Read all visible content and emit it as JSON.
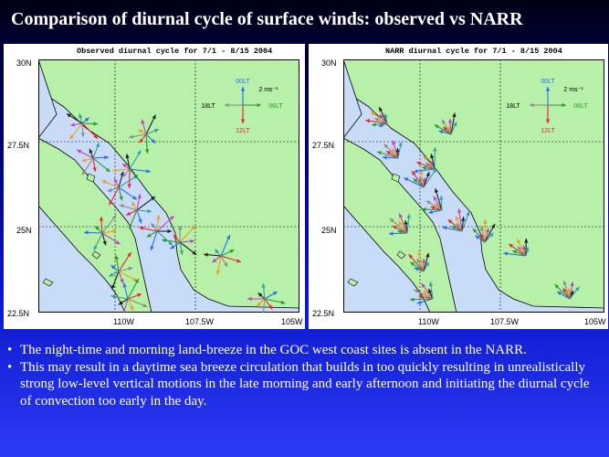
{
  "slide": {
    "title": "Comparison of diurnal cycle of surface winds: observed vs NARR"
  },
  "panels": [
    {
      "title": "Observed diurnal cycle for 7/1 - 8/15 2004",
      "y_ticks": [
        "30N",
        "27.5N",
        "25N",
        "22.5N"
      ],
      "x_ticks": [
        "110W",
        "107.5W",
        "105W"
      ],
      "legend": {
        "top": "00LT",
        "scale": "2 ms⁻¹",
        "left": "18LT",
        "right": "06LT",
        "bottom": "12LT"
      }
    },
    {
      "title": "NARR diurnal cycle for 7/1 - 8/15 2004",
      "y_ticks": [
        "30N",
        "27.5N",
        "25N",
        "22.5N"
      ],
      "x_ticks": [
        "110W",
        "107.5W",
        "105W"
      ],
      "legend": {
        "top": "00LT",
        "scale": "2 ms⁻¹",
        "left": "18LT",
        "right": "06LT",
        "bottom": "12LT"
      }
    }
  ],
  "colors": {
    "land": "#b7f0a8",
    "sea": "#c9dcf7",
    "lt00": "#2a6cf0",
    "lt06": "#2a9a2a",
    "lt12": "#e8262a",
    "lt18": "#8a8a8a"
  },
  "bullets": [
    {
      "text": "The night-time and morning land-breeze in the GOC west coast sites is absent in the NARR."
    },
    {
      "text": "This may result in a daytime sea breeze circulation that builds in too quickly resulting in unrealistically strong low-level vertical motions in the late morning and early afternoon and initiating the diurnal cycle of convection too early in the day."
    }
  ]
}
